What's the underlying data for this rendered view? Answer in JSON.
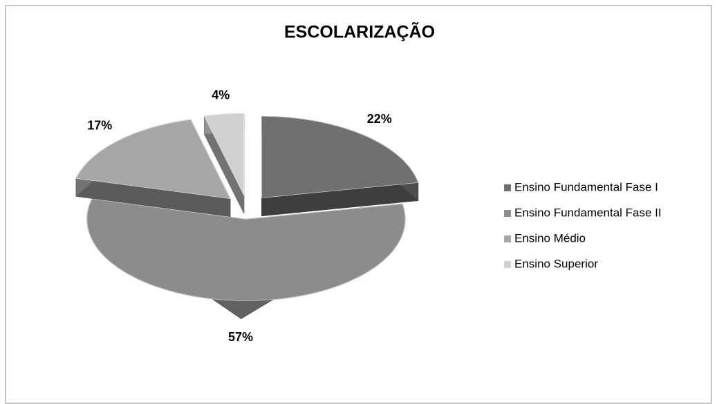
{
  "chart_data": {
    "type": "pie",
    "title": "ESCOLARIZAÇÃO",
    "categories": [
      "Ensino Fundamental Fase I",
      "Ensino Fundamental Fase II",
      "Ensino Médio",
      "Ensino Superior"
    ],
    "values": [
      22,
      57,
      17,
      4
    ],
    "value_labels": [
      "22%",
      "57%",
      "17%",
      "4%"
    ],
    "colors": [
      "#707070",
      "#8c8c8c",
      "#a6a6a6",
      "#d0d0d0"
    ],
    "legend": "right"
  }
}
